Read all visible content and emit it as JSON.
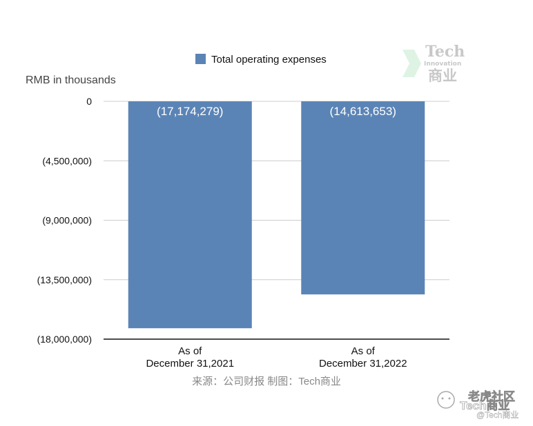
{
  "chart_data": {
    "type": "bar",
    "categories": [
      [
        "As of",
        "December 31,2021"
      ],
      [
        "As of",
        "December 31,2022"
      ]
    ],
    "series": [
      {
        "name": "Total operating expenses",
        "values": [
          -17174279,
          -14613653
        ],
        "labels": [
          "(17,174,279)",
          "(14,613,653)"
        ],
        "color": "#5b84b6"
      }
    ],
    "title": "",
    "ylabel": "RMB in thousands",
    "ylim": [
      -18000000,
      0
    ],
    "yticks": [
      0,
      -4500000,
      -9000000,
      -13500000,
      -18000000
    ],
    "ytick_labels": [
      "0",
      "(4,500,000)",
      "(9,000,000)",
      "(13,500,000)",
      "(18,000,000)"
    ],
    "grid": true,
    "legend_position": "top-center"
  },
  "source_note": "来源：公司财报 制图：Tech商业",
  "watermark": {
    "logo_word": "Tech",
    "logo_sub": "Innovation",
    "logo_cn": "商业",
    "bottom_line1": "老虎社区",
    "bottom_line2": "Tech商业",
    "bottom_handle": "@Tech商业"
  }
}
